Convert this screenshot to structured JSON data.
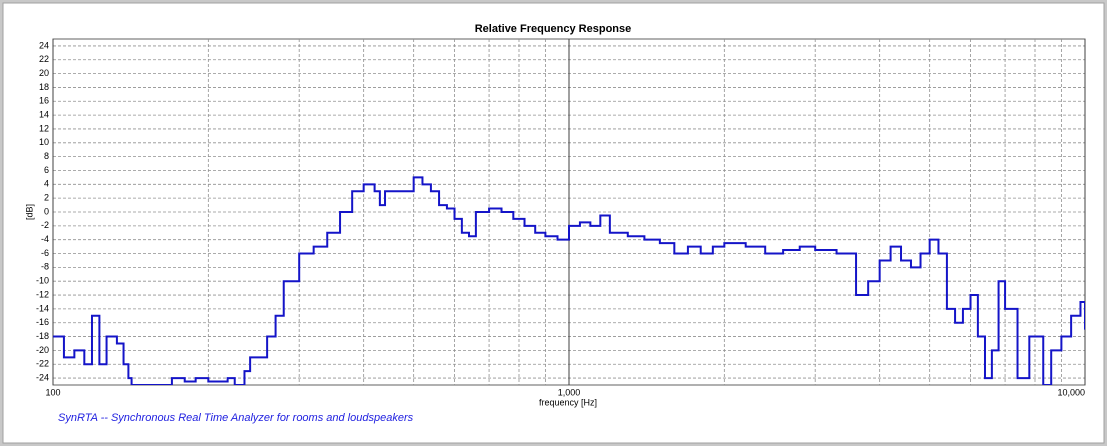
{
  "chart_data": {
    "type": "line",
    "title": "Relative Frequency Response",
    "x_label": "frequency [Hz]",
    "y_label": "[dB]",
    "footer": "SynRTA -- Synchronous Real Time Analyzer for rooms and loudspeakers",
    "xscale": "log",
    "grid": true,
    "step": true,
    "xlim": [
      100,
      10000
    ],
    "xticks": [
      {
        "value": 100,
        "label": "100"
      },
      {
        "value": 1000,
        "label": "1,000"
      },
      {
        "value": 10000,
        "label": "10,000"
      }
    ],
    "xticks_minor": [
      200,
      300,
      400,
      500,
      600,
      700,
      800,
      900,
      2000,
      3000,
      4000,
      5000,
      6000,
      7000,
      8000,
      9000
    ],
    "ylim": [
      -25,
      25
    ],
    "yticks": [
      -24,
      -22,
      -20,
      -18,
      -16,
      -14,
      -12,
      -10,
      -8,
      -6,
      -4,
      -2,
      0,
      2,
      4,
      6,
      8,
      10,
      12,
      14,
      16,
      18,
      20,
      22,
      24
    ],
    "x": [
      100,
      105,
      110,
      115,
      119,
      123,
      127,
      133,
      137,
      140,
      142,
      170,
      180,
      189,
      200,
      218,
      225,
      235,
      241,
      260,
      270,
      280,
      300,
      320,
      340,
      360,
      380,
      400,
      420,
      430,
      440,
      460,
      480,
      500,
      520,
      540,
      560,
      580,
      600,
      620,
      640,
      660,
      700,
      740,
      780,
      820,
      860,
      900,
      950,
      1000,
      1050,
      1100,
      1150,
      1200,
      1300,
      1400,
      1500,
      1600,
      1700,
      1800,
      1900,
      2000,
      2200,
      2400,
      2600,
      2800,
      3000,
      3300,
      3600,
      3800,
      4000,
      4200,
      4400,
      4600,
      4800,
      5000,
      5200,
      5400,
      5600,
      5800,
      6000,
      6200,
      6400,
      6600,
      6800,
      7000,
      7400,
      7800,
      8300,
      8600,
      9000,
      9400,
      9800,
      10000
    ],
    "series": [
      {
        "name": "response",
        "color": "#1414c8",
        "values": [
          -18,
          -21,
          -20,
          -22,
          -15,
          -22,
          -18,
          -19,
          -22,
          -24,
          -25,
          -24,
          -24.5,
          -24,
          -24.5,
          -24,
          -25,
          -23,
          -21,
          -18,
          -15,
          -10,
          -6,
          -5,
          -3,
          0,
          3,
          4,
          3,
          1,
          3,
          3,
          3,
          5,
          4,
          3,
          1,
          0.5,
          -1,
          -3,
          -3.5,
          0,
          0.5,
          0,
          -1,
          -2,
          -3,
          -3.5,
          -4,
          -2,
          -1.5,
          -2,
          -0.5,
          -3,
          -3.5,
          -4,
          -4.5,
          -6,
          -5,
          -6,
          -5,
          -4.5,
          -5,
          -6,
          -5.5,
          -5,
          -5.5,
          -6,
          -12,
          -10,
          -7,
          -5,
          -7,
          -8,
          -6,
          -4,
          -6,
          -14,
          -16,
          -14,
          -12,
          -18,
          -24,
          -20,
          -10,
          -14,
          -24,
          -18,
          -25,
          -20,
          -18,
          -15,
          -13,
          -17
        ]
      }
    ]
  }
}
